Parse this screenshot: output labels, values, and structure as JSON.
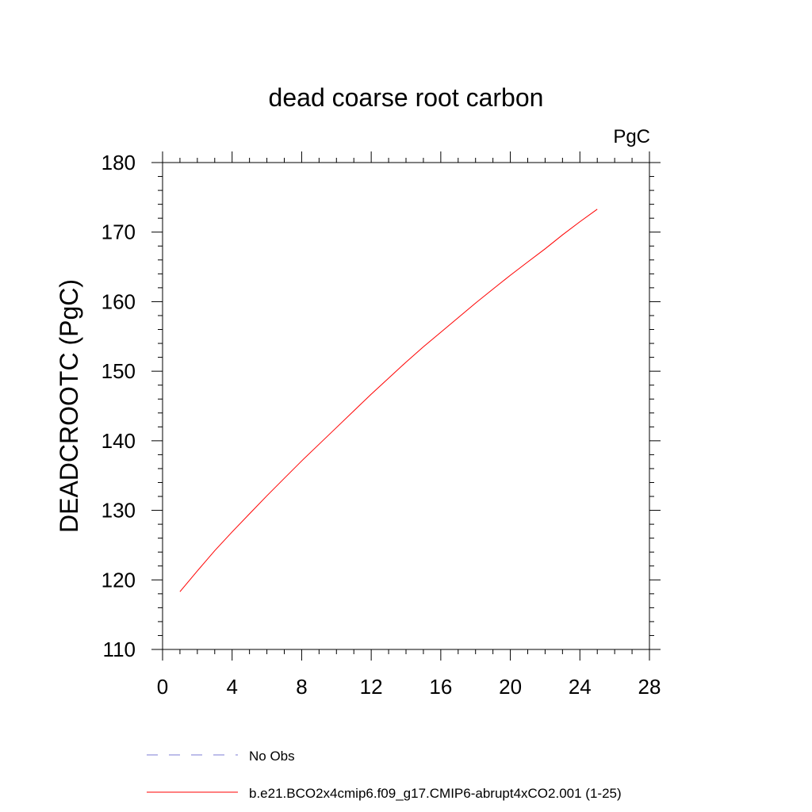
{
  "chart_data": {
    "type": "line",
    "title": "dead coarse root carbon",
    "units_label": "PgC",
    "ylabel": "DEADCROOTC  (PgC)",
    "xlabel": "",
    "xlim": [
      0,
      28
    ],
    "ylim": [
      110,
      180
    ],
    "x_ticks": [
      0,
      4,
      8,
      12,
      16,
      20,
      24,
      28
    ],
    "y_ticks": [
      110,
      120,
      130,
      140,
      150,
      160,
      170,
      180
    ],
    "grid": false,
    "legend_position": "bottom",
    "series": [
      {
        "name": "b.e21.BCO2x4cmip6.f09_g17.CMIP6-abrupt4xCO2.001 (1-25)",
        "color": "#ff0000",
        "style": "solid",
        "x": [
          1,
          2,
          3,
          4,
          5,
          6,
          7,
          8,
          9,
          10,
          11,
          12,
          13,
          14,
          15,
          16,
          17,
          18,
          19,
          20,
          21,
          22,
          23,
          24,
          25
        ],
        "y": [
          118.3,
          121.3,
          124.2,
          126.9,
          129.5,
          132.1,
          134.6,
          137.1,
          139.5,
          141.9,
          144.3,
          146.7,
          149.0,
          151.3,
          153.5,
          155.6,
          157.7,
          159.8,
          161.8,
          163.8,
          165.7,
          167.6,
          169.6,
          171.5,
          173.3
        ]
      }
    ],
    "legend": [
      {
        "label": "No Obs",
        "color": "#7b7bd6",
        "style": "dashed"
      },
      {
        "label": "b.e21.BCO2x4cmip6.f09_g17.CMIP6-abrupt4xCO2.001 (1-25)",
        "color": "#ff0000",
        "style": "solid"
      }
    ]
  }
}
